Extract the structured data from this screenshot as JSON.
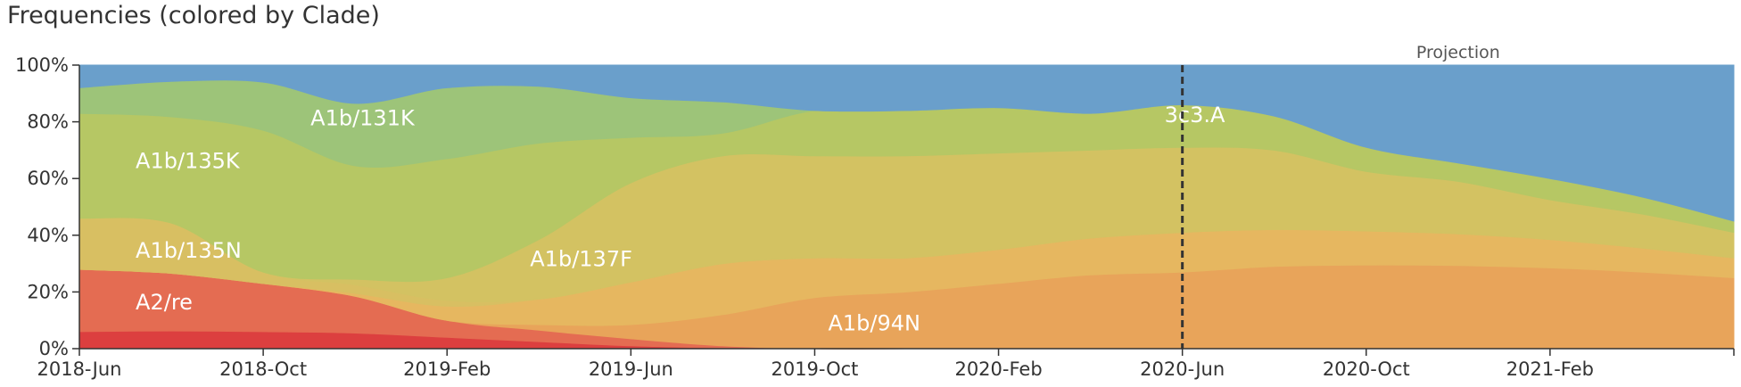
{
  "title": "Frequencies (colored by Clade)",
  "projection_label": "Projection",
  "chart_data": {
    "type": "area",
    "stacked": true,
    "x": [
      "2018-06",
      "2018-08",
      "2018-10",
      "2018-12",
      "2019-02",
      "2019-04",
      "2019-06",
      "2019-08",
      "2019-10",
      "2019-12",
      "2020-02",
      "2020-04",
      "2020-06",
      "2020-08",
      "2020-10",
      "2020-12",
      "2021-02",
      "2021-04",
      "2021-06"
    ],
    "x_ticks": [
      "2018-Jun",
      "2018-Oct",
      "2019-Feb",
      "2019-Jun",
      "2019-Oct",
      "2020-Feb",
      "2020-Jun",
      "2020-Oct",
      "2021-Feb"
    ],
    "y_ticks": [
      "0%",
      "20%",
      "40%",
      "60%",
      "80%",
      "100%"
    ],
    "ylim": [
      0,
      100
    ],
    "projection_start": "2020-06",
    "series": [
      {
        "name": "",
        "color": "#dc3f3f",
        "values": [
          6,
          6,
          6,
          5.5,
          4,
          2.5,
          1,
          0.3,
          0,
          0,
          0,
          0,
          0,
          0,
          0,
          0,
          0,
          0,
          0
        ]
      },
      {
        "name": "A2/re",
        "color": "#e46c52",
        "values": [
          22,
          19.5,
          17,
          13,
          6,
          4,
          2.5,
          0.7,
          0,
          0,
          0,
          0,
          0,
          0,
          0,
          0,
          0,
          0,
          0
        ]
      },
      {
        "name": "A1b/94N",
        "color": "#e8a45a",
        "values": [
          0,
          0,
          0,
          0,
          0,
          2,
          5,
          11,
          18,
          20,
          23,
          26,
          27,
          29,
          29.5,
          29.3,
          28.5,
          27,
          25
        ]
      },
      {
        "name": "",
        "color": "#e6b760",
        "values": [
          0,
          0,
          0,
          1,
          5,
          9,
          15,
          18,
          14,
          12,
          12,
          13,
          14,
          13,
          12,
          11.2,
          10,
          8.5,
          7
        ]
      },
      {
        "name": "A1b/135N",
        "color": "#d8bf62",
        "values": [
          18,
          17,
          4,
          3,
          2,
          0,
          0,
          0,
          0,
          0,
          0,
          0,
          0,
          0,
          0,
          0,
          0,
          0,
          0
        ]
      },
      {
        "name": "A1b/137F",
        "color": "#d3c262",
        "values": [
          0,
          0,
          0,
          2,
          8,
          21,
          35,
          38,
          36,
          36,
          34,
          31,
          30,
          28,
          21,
          18.5,
          14,
          12,
          9
        ]
      },
      {
        "name": "A1b/135K",
        "color": "#b6c764",
        "values": [
          37,
          36,
          50,
          40,
          42,
          34,
          16,
          8,
          16,
          16,
          16,
          13,
          15,
          12,
          8.5,
          6.5,
          7.5,
          6,
          4
        ]
      },
      {
        "name": "A1b/131K",
        "color": "#9dc479",
        "values": [
          9,
          12,
          17,
          22,
          25,
          20,
          14,
          11,
          0,
          0,
          0,
          0,
          0,
          0,
          0,
          0,
          0,
          0,
          0
        ]
      },
      {
        "name": "3c3.A",
        "color": "#6a9fcb",
        "values": [
          8,
          5.5,
          6,
          13.5,
          8,
          7.5,
          11.5,
          13,
          16,
          16,
          15,
          17,
          14,
          18,
          29,
          34.5,
          40,
          46.5,
          55
        ]
      }
    ]
  }
}
